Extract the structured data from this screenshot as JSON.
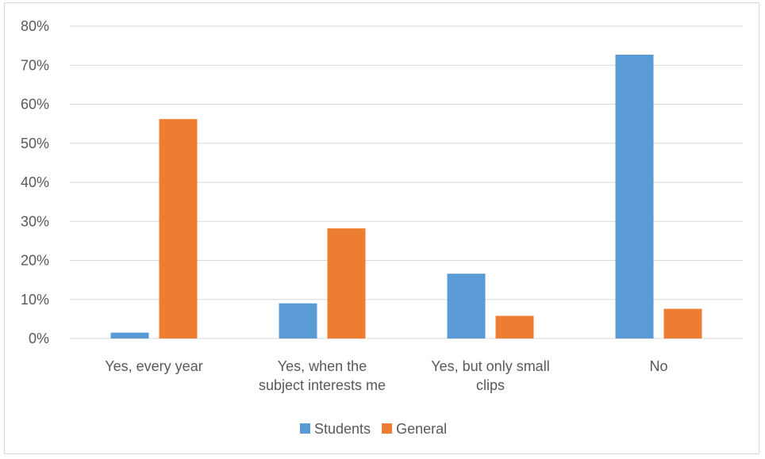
{
  "chart_data": {
    "type": "bar",
    "categories": [
      [
        "Yes, every year"
      ],
      [
        "Yes, when the",
        "subject interests me"
      ],
      [
        "Yes, but only small",
        "clips"
      ],
      [
        "No"
      ]
    ],
    "series": [
      {
        "name": "Students",
        "color": "#5b9bd5",
        "values": [
          1.5,
          9.0,
          16.6,
          72.7
        ]
      },
      {
        "name": "General",
        "color": "#ed7d31",
        "values": [
          56.2,
          28.2,
          5.8,
          7.6
        ]
      }
    ],
    "ylim": [
      0,
      80
    ],
    "yticks": [
      0,
      10,
      20,
      30,
      40,
      50,
      60,
      70,
      80
    ],
    "ytick_suffix": "%",
    "grid": true,
    "legend_position": "bottom"
  }
}
